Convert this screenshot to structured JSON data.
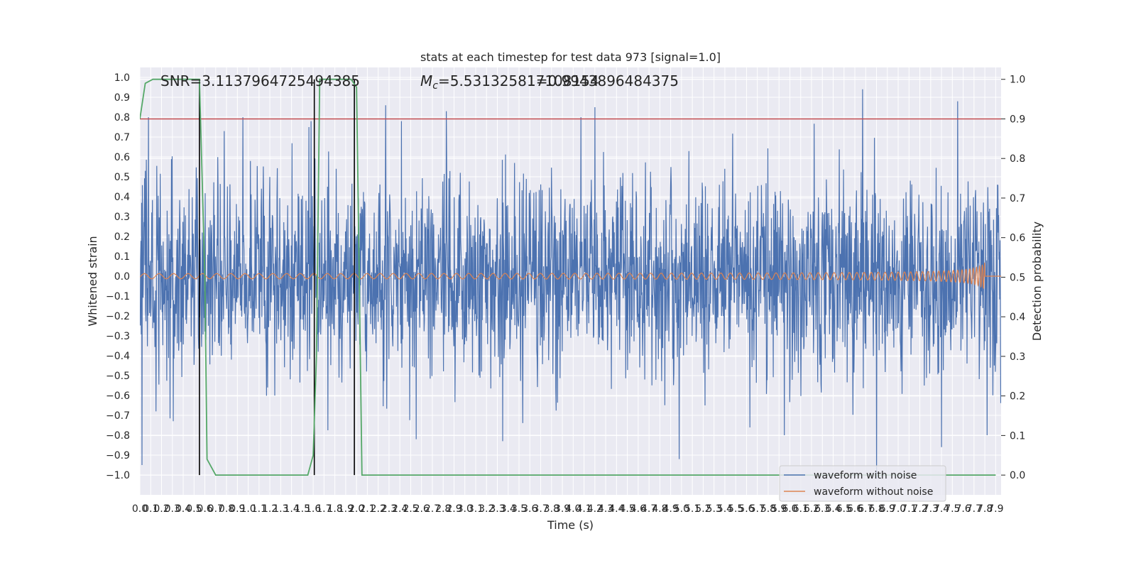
{
  "chart_data": {
    "type": "line",
    "title": "stats at each timestep for test data 973 [signal=1.0]",
    "xlabel": "Time (s)",
    "ylabel": "Whitened strain",
    "ylabel_right": "Detection probability",
    "xlim": [
      0.0,
      7.95
    ],
    "ylim": [
      -1.1,
      1.05
    ],
    "ylim_right": [
      -0.05,
      1.03
    ],
    "x_ticks": [
      0.0,
      0.1,
      0.2,
      0.3,
      0.4,
      0.5,
      0.6,
      0.7,
      0.8,
      0.9,
      1.0,
      1.1,
      1.2,
      1.3,
      1.4,
      1.5,
      1.6,
      1.7,
      1.8,
      1.9,
      2.0,
      2.1,
      2.2,
      2.3,
      2.4,
      2.5,
      2.6,
      2.7,
      2.8,
      2.9,
      3.0,
      3.1,
      3.2,
      3.3,
      3.4,
      3.5,
      3.6,
      3.7,
      3.8,
      3.9,
      4.0,
      4.1,
      4.2,
      4.3,
      4.4,
      4.5,
      4.6,
      4.7,
      4.8,
      4.9,
      5.0,
      5.1,
      5.2,
      5.3,
      5.4,
      5.5,
      5.6,
      5.7,
      5.8,
      5.9,
      6.0,
      6.1,
      6.2,
      6.3,
      6.4,
      6.5,
      6.6,
      6.7,
      6.8,
      6.9,
      7.0,
      7.1,
      7.2,
      7.3,
      7.4,
      7.5,
      7.6,
      7.7,
      7.8,
      7.9
    ],
    "y_ticks": [
      -1.0,
      -0.9,
      -0.8,
      -0.7,
      -0.6,
      -0.5,
      -0.4,
      -0.3,
      -0.2,
      -0.1,
      0.0,
      0.1,
      0.2,
      0.3,
      0.4,
      0.5,
      0.6,
      0.7,
      0.8,
      0.9,
      1.0
    ],
    "y_ticks_right": [
      0.0,
      0.1,
      0.2,
      0.3,
      0.4,
      0.5,
      0.6,
      0.7,
      0.8,
      0.9,
      1.0
    ],
    "grid": true,
    "legend_position": "lower-right",
    "annotations": {
      "snr": "SNR=3.1137964725494385",
      "mc_prefix": "M",
      "mc_sub": "c",
      "mc_value": "=5.531325817108154",
      "overlap": "1=0.9943896484375"
    },
    "threshold": 0.9,
    "threshold_color": "#c44e52",
    "detection_boundaries": [
      0.55,
      1.61,
      1.98
    ],
    "detection_probability": {
      "name": "Detection probability",
      "color": "#55a868",
      "x": [
        0.0,
        0.05,
        0.12,
        0.2,
        0.3,
        0.4,
        0.5,
        0.55,
        0.6,
        0.62,
        0.7,
        0.8,
        0.9,
        1.0,
        1.1,
        1.2,
        1.3,
        1.4,
        1.5,
        1.55,
        1.6,
        1.63,
        1.66,
        1.7,
        1.8,
        1.9,
        1.95,
        2.0,
        2.02,
        2.05,
        2.1,
        2.2,
        2.4,
        3.0,
        4.0,
        5.0,
        6.0,
        7.0,
        7.9
      ],
      "y": [
        0.9,
        0.99,
        1.0,
        1.0,
        1.0,
        1.0,
        1.0,
        1.0,
        0.5,
        0.04,
        0.0,
        0.0,
        0.0,
        0.0,
        0.0,
        0.0,
        0.0,
        0.0,
        0.0,
        0.0,
        0.05,
        0.3,
        1.0,
        1.0,
        1.0,
        1.0,
        1.0,
        0.98,
        0.6,
        0.0,
        0.0,
        0.0,
        0.0,
        0.0,
        0.0,
        0.0,
        0.0,
        0.0,
        0.0
      ]
    },
    "series": [
      {
        "name": "waveform with noise",
        "color": "#4c72b0",
        "typical_amplitude": 0.3,
        "peaks": [
          {
            "x": 0.02,
            "y": -0.95
          },
          {
            "x": 0.08,
            "y": 0.8
          },
          {
            "x": 0.15,
            "y": -0.68
          },
          {
            "x": 0.78,
            "y": 0.73
          },
          {
            "x": 0.95,
            "y": 0.8
          },
          {
            "x": 1.56,
            "y": 0.75
          },
          {
            "x": 2.27,
            "y": 0.86
          },
          {
            "x": 2.55,
            "y": -0.82
          },
          {
            "x": 2.83,
            "y": 0.83
          },
          {
            "x": 3.35,
            "y": -0.83
          },
          {
            "x": 4.07,
            "y": 0.8
          },
          {
            "x": 4.2,
            "y": 0.85
          },
          {
            "x": 4.98,
            "y": -0.92
          },
          {
            "x": 5.95,
            "y": -0.8
          },
          {
            "x": 6.67,
            "y": 0.94
          },
          {
            "x": 6.8,
            "y": -1.02
          },
          {
            "x": 7.4,
            "y": -0.86
          },
          {
            "x": 7.55,
            "y": 0.88
          },
          {
            "x": 7.82,
            "y": -0.8
          }
        ]
      },
      {
        "name": "waveform without noise",
        "color": "#dd8452",
        "amplitude_start": 0.01,
        "amplitude_end": 0.07,
        "merger_time": 7.8
      }
    ]
  }
}
